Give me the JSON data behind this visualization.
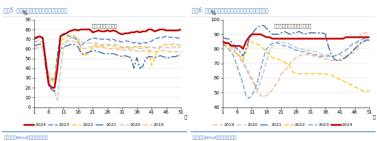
{
  "title_left": "图表5: 近半月汽车半钢胎开工率进一步回升",
  "title_right": "图表6: 近半月江浙地区涤纶长丝开工率均值延续微升",
  "annotation_left": "开工率：汽车半钢胎",
  "annotation_right": "开工率：涤纶长丝；江浙地区",
  "footer": "资料来源：Wind，国盛证券研究所",
  "title_bg": "#dce6f1",
  "title_color": "#4472c4",
  "footer_color": "#4472c4",
  "left_ylabel": "%",
  "right_ylabel": "%",
  "xlabel": "周",
  "left_ylim": [
    0,
    90
  ],
  "right_ylim": [
    40,
    100
  ],
  "left_yticks": [
    0,
    10,
    20,
    30,
    40,
    50,
    60,
    70,
    80,
    90
  ],
  "right_yticks": [
    40,
    50,
    60,
    70,
    80,
    90,
    100
  ],
  "xticks": [
    1,
    6,
    11,
    16,
    21,
    26,
    31,
    36,
    41,
    46,
    51
  ],
  "left_series": {
    "2024": {
      "color": "#c00000",
      "lw": 1.8,
      "ls": "solid",
      "data": [
        71,
        72,
        73,
        71,
        48,
        24,
        20,
        20,
        40,
        73,
        75,
        76,
        78,
        79,
        80,
        79,
        80,
        80,
        80,
        80,
        77,
        78,
        79,
        78,
        78,
        79,
        78,
        79,
        78,
        76,
        75,
        76,
        76,
        77,
        77,
        78,
        77,
        78,
        78,
        80,
        80,
        78,
        79,
        80,
        80,
        79,
        79,
        79,
        79,
        79,
        80
      ]
    },
    "2023": {
      "color": "#4472c4",
      "lw": 1.0,
      "ls": "dashed",
      "data": [
        70,
        71,
        72,
        72,
        44,
        30,
        28,
        30,
        55,
        73,
        74,
        75,
        73,
        72,
        71,
        67,
        63,
        66,
        68,
        70,
        71,
        71,
        70,
        70,
        70,
        70,
        69,
        70,
        68,
        68,
        67,
        68,
        68,
        67,
        66,
        67,
        65,
        67,
        66,
        67,
        68,
        70,
        71,
        72,
        72,
        73,
        72,
        72,
        72,
        71,
        72
      ]
    },
    "2022": {
      "color": "#ffc000",
      "lw": 1.0,
      "ls": "dashed",
      "data": [
        67,
        68,
        68,
        66,
        45,
        32,
        28,
        26,
        50,
        68,
        70,
        72,
        73,
        74,
        73,
        71,
        58,
        52,
        54,
        56,
        62,
        64,
        63,
        63,
        63,
        63,
        64,
        63,
        62,
        61,
        61,
        62,
        61,
        60,
        62,
        63,
        62,
        63,
        62,
        61,
        43,
        50,
        58,
        62,
        64,
        65,
        64,
        65,
        65,
        64,
        64
      ]
    },
    "2021": {
      "color": "#2e5fa3",
      "lw": 1.0,
      "ls": "dashdot",
      "data": [
        63,
        64,
        65,
        64,
        40,
        22,
        18,
        16,
        42,
        60,
        62,
        63,
        64,
        65,
        64,
        62,
        56,
        54,
        56,
        57,
        58,
        58,
        57,
        56,
        55,
        55,
        55,
        55,
        54,
        53,
        52,
        53,
        52,
        51,
        40,
        51,
        40,
        42,
        50,
        52,
        52,
        51,
        52,
        53,
        52,
        51,
        51,
        52,
        52,
        53,
        53
      ]
    },
    "2020": {
      "color": "#bfbfbf",
      "lw": 1.0,
      "ls": "dashed",
      "data": [
        67,
        68,
        68,
        66,
        44,
        30,
        22,
        16,
        7,
        38,
        60,
        68,
        70,
        72,
        72,
        70,
        68,
        66,
        66,
        66,
        66,
        66,
        65,
        64,
        65,
        65,
        64,
        65,
        64,
        63,
        62,
        62,
        62,
        62,
        62,
        62,
        60,
        61,
        61,
        62,
        62,
        61,
        62,
        62,
        62,
        62,
        61,
        62,
        62,
        62,
        62
      ]
    },
    "2019": {
      "color": "#f4b183",
      "lw": 1.0,
      "ls": "dashed",
      "data": [
        60,
        61,
        62,
        62,
        44,
        36,
        30,
        28,
        50,
        64,
        66,
        68,
        68,
        68,
        67,
        66,
        62,
        60,
        61,
        62,
        62,
        62,
        62,
        62,
        61,
        61,
        60,
        60,
        60,
        59,
        59,
        59,
        59,
        59,
        58,
        58,
        57,
        58,
        58,
        58,
        58,
        57,
        57,
        58,
        58,
        58,
        57,
        57,
        57,
        57,
        57
      ]
    }
  },
  "right_series": {
    "2019": {
      "color": "#f4b183",
      "lw": 1.0,
      "ls": "dashed",
      "data": [
        85,
        84,
        84,
        82,
        80,
        77,
        75,
        72,
        68,
        64,
        60,
        56,
        50,
        48,
        47,
        48,
        50,
        52,
        55,
        58,
        63,
        65,
        67,
        70,
        72,
        74,
        75,
        76,
        76,
        76,
        76,
        75,
        75,
        74,
        74,
        73,
        73,
        72,
        72,
        72,
        73,
        74,
        75,
        76,
        78,
        80,
        85,
        90,
        91,
        91,
        90
      ]
    },
    "2020": {
      "color": "#bfbfbf",
      "lw": 1.0,
      "ls": "dashed",
      "data": [
        86,
        85,
        85,
        83,
        80,
        77,
        73,
        70,
        66,
        62,
        58,
        55,
        52,
        58,
        64,
        72,
        78,
        82,
        84,
        85,
        85,
        84,
        84,
        83,
        82,
        81,
        80,
        80,
        79,
        79,
        79,
        78,
        78,
        77,
        76,
        76,
        76,
        75,
        75,
        76,
        76,
        75,
        75,
        76,
        77,
        78,
        80,
        84,
        86,
        87,
        87
      ]
    },
    "2021": {
      "color": "#2e5fa3",
      "lw": 1.0,
      "ls": "dashdot",
      "data": [
        88,
        87,
        87,
        85,
        82,
        80,
        78,
        75,
        80,
        86,
        90,
        93,
        95,
        96,
        96,
        94,
        92,
        90,
        90,
        90,
        91,
        92,
        91,
        90,
        91,
        91,
        92,
        91,
        90,
        91,
        91,
        91,
        91,
        91,
        91,
        90,
        82,
        76,
        73,
        72,
        72,
        73,
        74,
        76,
        78,
        80,
        82,
        84,
        85,
        86,
        86
      ]
    },
    "2022": {
      "color": "#ffc000",
      "lw": 1.0,
      "ls": "dashed",
      "data": [
        84,
        83,
        82,
        80,
        78,
        76,
        75,
        72,
        78,
        83,
        85,
        84,
        83,
        82,
        80,
        78,
        76,
        74,
        73,
        73,
        72,
        71,
        70,
        68,
        64,
        63,
        63,
        63,
        63,
        63,
        63,
        63,
        63,
        63,
        63,
        63,
        62,
        62,
        61,
        60,
        59,
        58,
        57,
        56,
        55,
        54,
        53,
        52,
        51,
        51,
        51
      ]
    },
    "2023": {
      "color": "#5b9bd5",
      "lw": 1.0,
      "ls": "dashed",
      "data": [
        83,
        82,
        80,
        78,
        74,
        68,
        62,
        56,
        48,
        46,
        48,
        52,
        58,
        66,
        74,
        80,
        82,
        84,
        84,
        84,
        83,
        82,
        82,
        81,
        80,
        79,
        79,
        78,
        78,
        77,
        77,
        76,
        76,
        75,
        75,
        75,
        75,
        75,
        75,
        76,
        77,
        78,
        79,
        81,
        83,
        84,
        85,
        86,
        87,
        88,
        88
      ]
    },
    "2024": {
      "color": "#c00000",
      "lw": 1.8,
      "ls": "solid",
      "data": [
        85,
        84,
        84,
        82,
        82,
        82,
        82,
        80,
        85,
        88,
        90,
        90,
        90,
        90,
        89,
        88,
        88,
        87,
        87,
        87,
        87,
        87,
        87,
        87,
        87,
        87,
        87,
        87,
        87,
        87,
        87,
        87,
        87,
        87,
        87,
        87,
        87,
        87,
        87,
        87,
        87,
        87,
        88,
        88,
        88,
        88,
        88,
        88,
        88,
        88,
        88
      ]
    }
  },
  "left_legend_order": [
    "2024",
    "2023",
    "2022",
    "2021",
    "2020",
    "2019"
  ],
  "right_legend_order": [
    "2019",
    "2020",
    "2021",
    "2022",
    "2023",
    "2024"
  ]
}
